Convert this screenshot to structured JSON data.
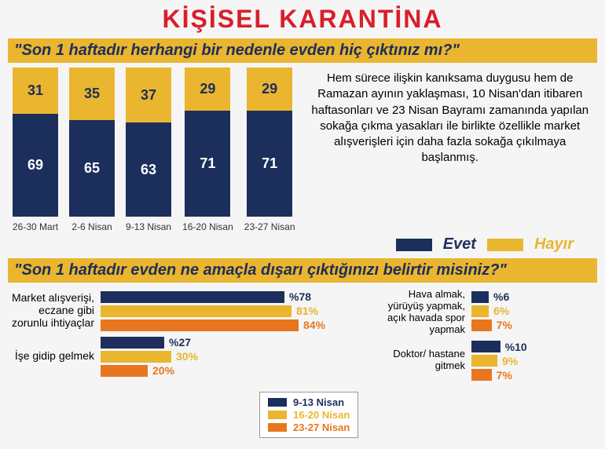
{
  "title": {
    "text": "KİŞİSEL KARANTİNA",
    "color": "#d81f2a",
    "fontsize": 32
  },
  "colors": {
    "navy": "#1c2e5b",
    "gold": "#eab52f",
    "orange": "#e8761e",
    "qbar_bg": "#eab52f",
    "qbar_text": "#1c2e5b"
  },
  "section1": {
    "question": "\"Son 1 haftadır herhangi bir nedenle evden hiç çıktınız mı?\"",
    "question_fontsize": 20,
    "bars": [
      {
        "label": "26-30 Mart",
        "yes": 69,
        "no": 31
      },
      {
        "label": "2-6 Nisan",
        "yes": 65,
        "no": 35
      },
      {
        "label": "9-13 Nisan",
        "yes": 63,
        "no": 37
      },
      {
        "label": "16-20 Nisan",
        "yes": 71,
        "no": 29
      },
      {
        "label": "23-27 Nisan",
        "yes": 71,
        "no": 29
      }
    ],
    "paragraph": "Hem sürece ilişkin kanıksama duygusu hem de Ramazan ayının yaklaşması, 10 Nisan'dan itibaren haftasonları ve 23 Nisan Bayramı zamanında yapılan sokağa çıkma yasakları ile birlikte özellikle market alışverişleri için daha fazla sokağa çıkılmaya başlanmış.",
    "legend": {
      "yes": "Evet",
      "no": "Hayır"
    }
  },
  "section2": {
    "question": "\"Son 1 haftadır evden ne amaçla dışarı çıktığınızı belirtir misiniz?\"",
    "question_fontsize": 20,
    "legend": [
      {
        "label": "9-13 Nisan",
        "color": "#1c2e5b"
      },
      {
        "label": "16-20 Nisan",
        "color": "#eab52f"
      },
      {
        "label": "23-27  Nisan",
        "color": "#e8761e"
      }
    ],
    "left_max": 100,
    "right_max": 30,
    "groups_left": [
      {
        "label": "Market alışverişi, eczane gibi zorunlu ihtiyaçlar",
        "rows": [
          {
            "value": 78,
            "display": "%78",
            "color": "#1c2e5b",
            "text_color": "#1c2e5b"
          },
          {
            "value": 81,
            "display": "81%",
            "color": "#eab52f",
            "text_color": "#eab52f"
          },
          {
            "value": 84,
            "display": "84%",
            "color": "#e8761e",
            "text_color": "#e8761e"
          }
        ]
      },
      {
        "label": "İşe gidip gelmek",
        "rows": [
          {
            "value": 27,
            "display": "%27",
            "color": "#1c2e5b",
            "text_color": "#1c2e5b"
          },
          {
            "value": 30,
            "display": "30%",
            "color": "#eab52f",
            "text_color": "#eab52f"
          },
          {
            "value": 20,
            "display": "20%",
            "color": "#e8761e",
            "text_color": "#e8761e"
          }
        ]
      }
    ],
    "groups_right": [
      {
        "label": "Hava almak, yürüyüş yapmak, açık havada spor yapmak",
        "rows": [
          {
            "value": 6,
            "display": "%6",
            "color": "#1c2e5b",
            "text_color": "#1c2e5b"
          },
          {
            "value": 6,
            "display": "6%",
            "color": "#eab52f",
            "text_color": "#eab52f"
          },
          {
            "value": 7,
            "display": "7%",
            "color": "#e8761e",
            "text_color": "#e8761e"
          }
        ]
      },
      {
        "label": "Doktor/ hastane gitmek",
        "rows": [
          {
            "value": 10,
            "display": "%10",
            "color": "#1c2e5b",
            "text_color": "#1c2e5b"
          },
          {
            "value": 9,
            "display": "9%",
            "color": "#eab52f",
            "text_color": "#eab52f"
          },
          {
            "value": 7,
            "display": "7%",
            "color": "#e8761e",
            "text_color": "#e8761e"
          }
        ]
      }
    ]
  }
}
